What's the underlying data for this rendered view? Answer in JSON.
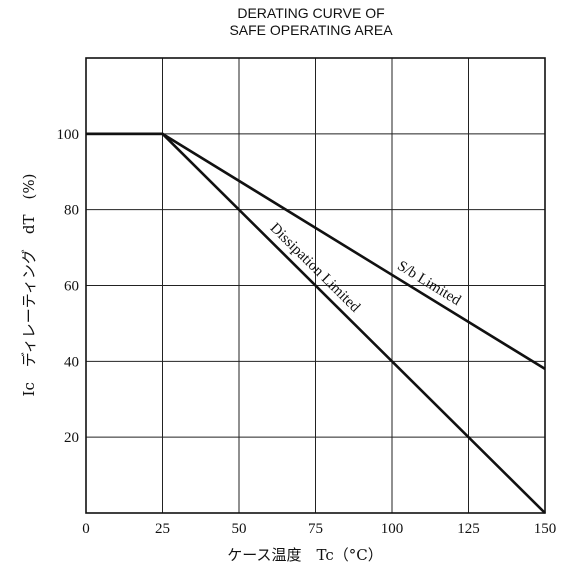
{
  "chart_data": {
    "type": "line",
    "title": "DERATING CURVE OF\nSAFE OPERATING AREA",
    "title_lines": [
      "DERATING CURVE OF",
      "SAFE OPERATING AREA"
    ],
    "xlabel": "ケース温度　Tc（°C）",
    "ylabel": "Ic　ディレーティング　dT　(%)",
    "xlim": [
      0,
      150
    ],
    "ylim": [
      0,
      120
    ],
    "x_ticks": [
      0,
      25,
      50,
      75,
      100,
      125,
      150
    ],
    "y_ticks": [
      20,
      40,
      60,
      80,
      100
    ],
    "x_gridlines": [
      25,
      50,
      75,
      100,
      125
    ],
    "y_gridlines": [
      20,
      40,
      60,
      80,
      100
    ],
    "grid": true,
    "series": [
      {
        "name": "S/b Limited",
        "x": [
          0,
          25,
          150
        ],
        "y": [
          100,
          100,
          38
        ]
      },
      {
        "name": "Dissipation Limited",
        "x": [
          0,
          25,
          150
        ],
        "y": [
          100,
          100,
          0
        ]
      }
    ],
    "annotations": [
      {
        "text": "S/b Limited",
        "series": "S/b Limited",
        "at_x": 110
      },
      {
        "text": "Dissipation Limited",
        "series": "Dissipation Limited",
        "at_x": 72
      }
    ]
  }
}
